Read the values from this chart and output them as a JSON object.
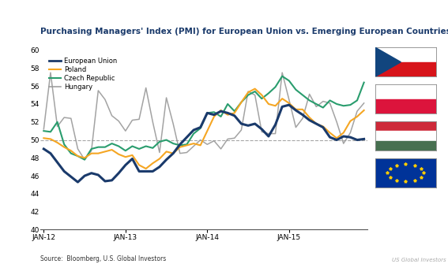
{
  "title": "Purchasing Managers' Index (PMI) for European Union vs. Emerging European Countries",
  "source": "Bloomberg, U.S. Global Investors",
  "watermark": "US Global Investors",
  "ylim": [
    40,
    60
  ],
  "yticks": [
    40,
    42,
    44,
    46,
    48,
    50,
    52,
    54,
    56,
    58,
    60
  ],
  "reference_line": 50,
  "colors": {
    "EU": "#1a3a6b",
    "Poland": "#f5a623",
    "Czech": "#2a9d6e",
    "Hungary": "#999999"
  },
  "legend_labels": [
    "European Union",
    "Poland",
    "Czech Republic",
    "Hungary"
  ],
  "xtick_labels": [
    "JAN-12",
    "JAN-13",
    "JAN-14",
    "JAN-15"
  ],
  "EU": [
    49.0,
    48.5,
    47.5,
    46.5,
    45.9,
    45.3,
    46.0,
    46.3,
    46.1,
    45.4,
    45.5,
    46.3,
    47.2,
    47.9,
    46.5,
    46.5,
    46.5,
    47.0,
    47.8,
    48.5,
    49.5,
    50.3,
    51.1,
    51.4,
    53.0,
    52.8,
    53.2,
    53.0,
    52.7,
    51.8,
    51.6,
    51.8,
    51.2,
    50.4,
    51.7,
    53.7,
    53.9,
    53.3,
    52.8,
    52.2,
    51.8,
    51.4,
    50.3,
    50.0,
    50.4,
    50.3,
    50.0,
    50.1
  ],
  "Poland": [
    50.2,
    50.1,
    49.7,
    49.2,
    48.8,
    48.2,
    48.0,
    48.5,
    48.5,
    48.7,
    48.9,
    48.4,
    48.1,
    48.3,
    47.2,
    46.8,
    47.4,
    47.9,
    48.7,
    48.5,
    49.2,
    49.4,
    49.6,
    49.4,
    51.0,
    52.6,
    53.3,
    52.8,
    53.0,
    54.2,
    55.3,
    55.7,
    55.0,
    54.0,
    53.8,
    54.6,
    54.1,
    53.4,
    53.4,
    52.5,
    51.8,
    51.5,
    50.8,
    50.2,
    50.8,
    52.1,
    52.6,
    53.3
  ],
  "Czech": [
    51.0,
    50.9,
    52.0,
    49.5,
    48.5,
    48.2,
    47.8,
    49.0,
    49.2,
    49.2,
    49.6,
    49.3,
    48.8,
    49.3,
    49.0,
    49.3,
    49.1,
    49.8,
    50.0,
    49.6,
    49.4,
    49.5,
    50.7,
    51.3,
    53.0,
    53.1,
    52.6,
    54.0,
    53.2,
    54.2,
    55.0,
    55.4,
    54.6,
    55.2,
    55.9,
    57.1,
    56.6,
    55.6,
    55.0,
    54.4,
    54.0,
    53.6,
    54.4,
    54.0,
    53.8,
    53.9,
    54.4,
    56.4
  ],
  "Hungary": [
    51.2,
    57.5,
    51.5,
    52.5,
    52.4,
    49.0,
    47.8,
    48.8,
    55.5,
    54.5,
    52.7,
    52.1,
    51.0,
    52.2,
    52.3,
    55.8,
    52.0,
    48.6,
    54.7,
    51.8,
    48.5,
    48.6,
    49.3,
    50.0,
    49.5,
    49.9,
    49.0,
    50.1,
    50.2,
    51.1,
    55.4,
    55.0,
    50.9,
    50.7,
    50.7,
    57.5,
    54.5,
    51.4,
    52.4,
    55.1,
    53.7,
    54.3,
    54.1,
    52.0,
    49.6,
    50.8,
    53.2,
    54.1
  ]
}
